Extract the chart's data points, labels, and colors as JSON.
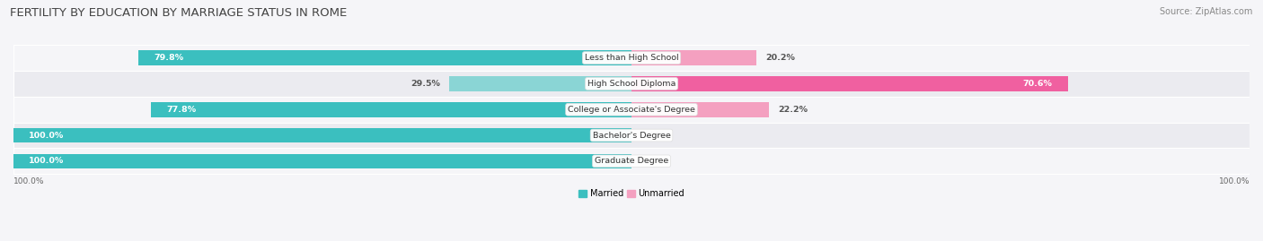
{
  "title": "FERTILITY BY EDUCATION BY MARRIAGE STATUS IN ROME",
  "source": "Source: ZipAtlas.com",
  "categories": [
    "Less than High School",
    "High School Diploma",
    "College or Associate's Degree",
    "Bachelor's Degree",
    "Graduate Degree"
  ],
  "married": [
    79.8,
    29.5,
    77.8,
    100.0,
    100.0
  ],
  "unmarried": [
    20.2,
    70.6,
    22.2,
    0.0,
    0.0
  ],
  "married_color_dark": "#3bbfbf",
  "married_color_light": "#8ad5d5",
  "unmarried_color_dark": "#f060a0",
  "unmarried_color_light": "#f4a0c0",
  "row_bg_stripe": "#ebebf0",
  "row_bg_plain": "#f5f5f8",
  "title_fontsize": 9.5,
  "source_fontsize": 7,
  "label_fontsize": 6.8,
  "value_fontsize": 6.8,
  "axis_label_fontsize": 6.5,
  "legend_fontsize": 7,
  "figsize": [
    14.06,
    2.69
  ],
  "dpi": 100
}
